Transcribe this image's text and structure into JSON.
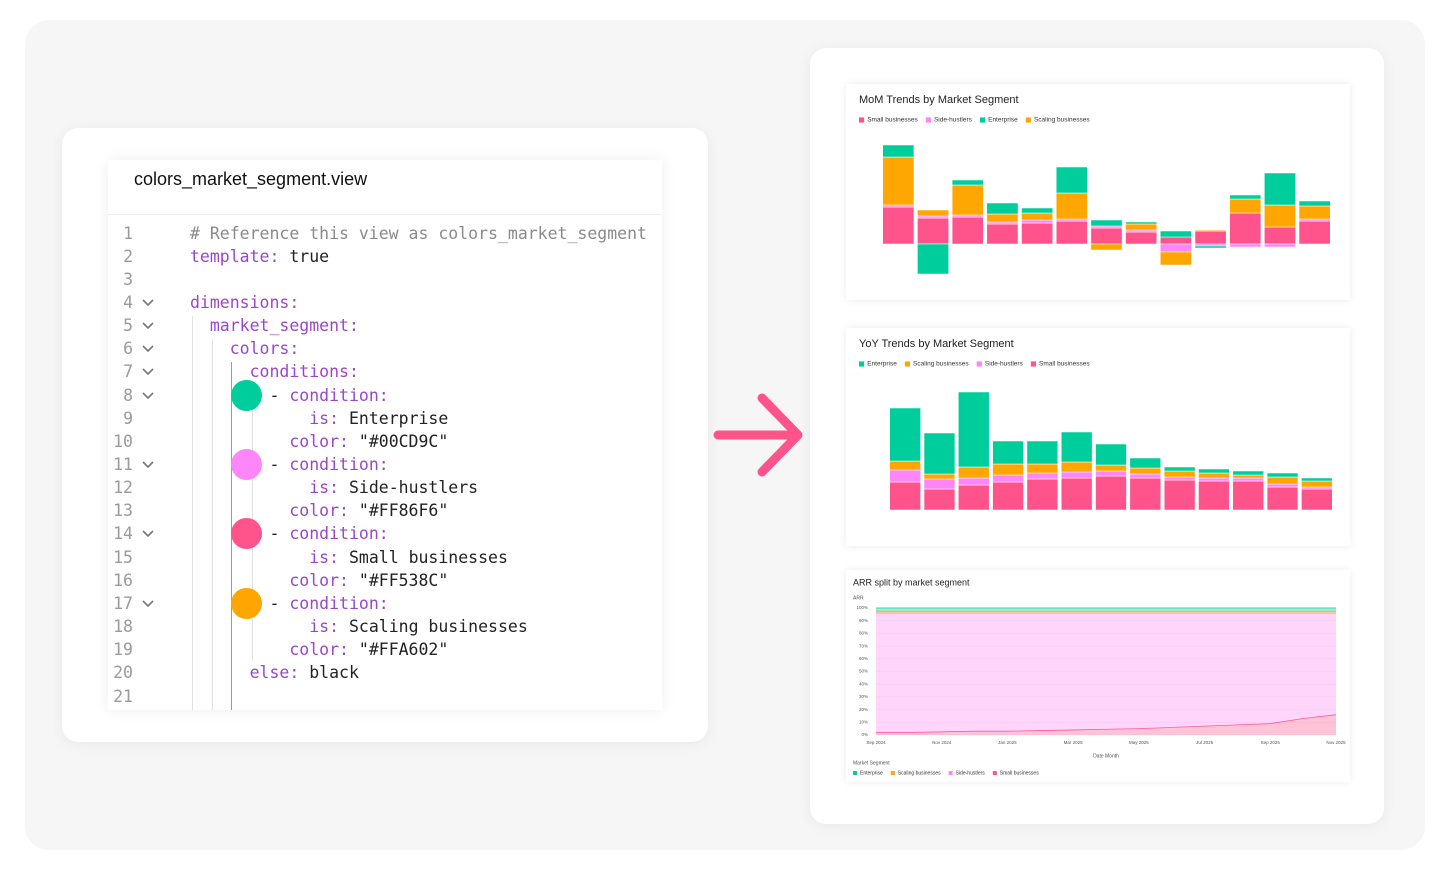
{
  "editor": {
    "filename": "colors_market_segment.view",
    "lines": [
      {
        "number": 1,
        "text": "# Reference this view as colors_market_segment"
      },
      {
        "number": 2,
        "text": "template: true"
      },
      {
        "number": 3
      },
      {
        "number": 4,
        "text": "dimensions:",
        "fold": true
      },
      {
        "number": 5,
        "text": "  market_segment:",
        "fold": true
      },
      {
        "number": 6,
        "text": "    colors:",
        "fold": true
      },
      {
        "number": 7,
        "text": "      conditions:",
        "fold": true
      },
      {
        "number": 8,
        "text": "        - condition:",
        "fold": true,
        "swatch": "#00CD9C"
      },
      {
        "number": 9,
        "text": "            is: Enterprise"
      },
      {
        "number": 10,
        "text": "          color: \"#00CD9C\""
      },
      {
        "number": 11,
        "text": "        - condition:",
        "fold": true,
        "swatch": "#FF86F6"
      },
      {
        "number": 12,
        "text": "            is: Side-hustlers"
      },
      {
        "number": 13,
        "text": "          color: \"#FF86F6\""
      },
      {
        "number": 14,
        "text": "        - condition:",
        "fold": true,
        "swatch": "#FF538C"
      },
      {
        "number": 15,
        "text": "            is: Small businesses"
      },
      {
        "number": 16,
        "text": "          color: \"#FF538C\""
      },
      {
        "number": 17,
        "text": "        - condition:",
        "fold": true,
        "swatch": "#FFA602"
      },
      {
        "number": 18,
        "text": "            is: Scaling businesses"
      },
      {
        "number": 19,
        "text": "          color: \"#FFA602\""
      },
      {
        "number": 20,
        "text": "      else: black"
      },
      {
        "number": 21
      }
    ]
  },
  "chart_data": [
    {
      "type": "bar",
      "stacked": true,
      "title": "MoM Trends by Market Segment",
      "legend": "top-left",
      "categories": [
        null,
        null,
        null,
        null,
        null,
        null,
        null,
        null,
        null,
        null,
        null,
        null,
        null
      ],
      "series": [
        {
          "name": "Small businesses",
          "color": "#FF538C",
          "values": [
            37,
            26,
            27,
            20,
            21,
            23,
            16,
            12,
            7,
            13,
            31,
            17,
            23
          ]
        },
        {
          "name": "Side-hustlers",
          "color": "#FF86F6",
          "values": [
            2,
            2,
            2,
            2,
            3,
            2,
            2,
            2,
            -8,
            -2,
            -3,
            -3,
            2
          ]
        },
        {
          "name": "Enterprise",
          "color": "#00CD9C",
          "values": [
            12,
            -30,
            5,
            11,
            5,
            26,
            6,
            2,
            6,
            -2,
            4,
            32,
            5
          ]
        },
        {
          "name": "Scaling businesses",
          "color": "#FFA602",
          "values": [
            48,
            6,
            30,
            8,
            7,
            26,
            -6,
            6,
            -13,
            1,
            14,
            22,
            13
          ]
        }
      ],
      "ylim": [
        -40,
        110
      ]
    },
    {
      "type": "bar",
      "stacked": true,
      "title": "YoY Trends by Market Segment",
      "legend": "top-left",
      "categories": [
        null,
        null,
        null,
        null,
        null,
        null,
        null,
        null,
        null,
        null,
        null,
        null,
        null
      ],
      "series": [
        {
          "name": "Enterprise",
          "color": "#00CD9C",
          "values": [
            53,
            41,
            75,
            23,
            23,
            30,
            21,
            10,
            4,
            4,
            4,
            4,
            3
          ]
        },
        {
          "name": "Scaling businesses",
          "color": "#FFA602",
          "values": [
            9,
            5,
            11,
            11,
            9,
            10,
            6,
            6,
            6,
            5,
            3,
            7,
            6
          ]
        },
        {
          "name": "Side-hustlers",
          "color": "#FF86F6",
          "values": [
            12,
            10,
            7,
            7,
            6,
            6,
            5,
            4,
            3,
            3,
            3,
            3,
            2
          ]
        },
        {
          "name": "Small businesses",
          "color": "#FF538C",
          "values": [
            28,
            21,
            25,
            28,
            31,
            32,
            34,
            32,
            30,
            29,
            29,
            23,
            21
          ]
        }
      ],
      "ylim": [
        0,
        130
      ]
    },
    {
      "type": "area",
      "stacked": true,
      "title": "ARR split by market segment",
      "y_label": "ARR",
      "x_label": "Date Month",
      "legend_title": "Market Segment",
      "legend": "bottom-left",
      "grid": true,
      "categories": [
        "Sep 2024",
        null,
        "Nov 2024",
        null,
        "Jan 2025",
        null,
        "Mar 2025",
        null,
        "May 2025",
        null,
        "Jul 2025",
        null,
        "Sep 2025",
        null,
        "Nov 2025"
      ],
      "series": [
        {
          "name": "Enterprise",
          "color": "#00CD9C",
          "values": [
            2.5,
            2.5,
            2.5,
            2.5,
            2.5,
            2.5,
            2.5,
            2.5,
            2.5,
            2.5,
            2.5,
            2.5,
            2.5,
            2.5,
            2.5
          ]
        },
        {
          "name": "Scaling businesses",
          "color": "#FFA602",
          "values": [
            1.5,
            1.5,
            1.5,
            1.5,
            1.5,
            1.5,
            1.5,
            1.5,
            1.5,
            1.5,
            1.5,
            1.5,
            1.5,
            1.5,
            1.5
          ]
        },
        {
          "name": "Side-hustlers",
          "color": "#FF86F6",
          "values": [
            94,
            94,
            93.5,
            93,
            93,
            92.5,
            92,
            91.5,
            91,
            90,
            89,
            88,
            87,
            83,
            80
          ]
        },
        {
          "name": "Small businesses",
          "color": "#FF538C",
          "values": [
            2,
            2,
            2.5,
            3,
            3,
            3.5,
            4,
            4.5,
            5,
            6,
            7,
            8,
            9,
            13,
            16
          ]
        }
      ],
      "ylim": [
        0,
        100
      ],
      "yticks": [
        {
          "value": 0,
          "label": "0%"
        },
        {
          "value": 10,
          "label": "10%"
        },
        {
          "value": 20,
          "label": "20%"
        },
        {
          "value": 30,
          "label": "30%"
        },
        {
          "value": 40,
          "label": "40%"
        },
        {
          "value": 50,
          "label": "50%"
        },
        {
          "value": 60,
          "label": "60%"
        },
        {
          "value": 70,
          "label": "70%"
        },
        {
          "value": 80,
          "label": "80%"
        },
        {
          "value": 90,
          "label": "90%"
        },
        {
          "value": 100,
          "label": "100%"
        }
      ]
    }
  ]
}
